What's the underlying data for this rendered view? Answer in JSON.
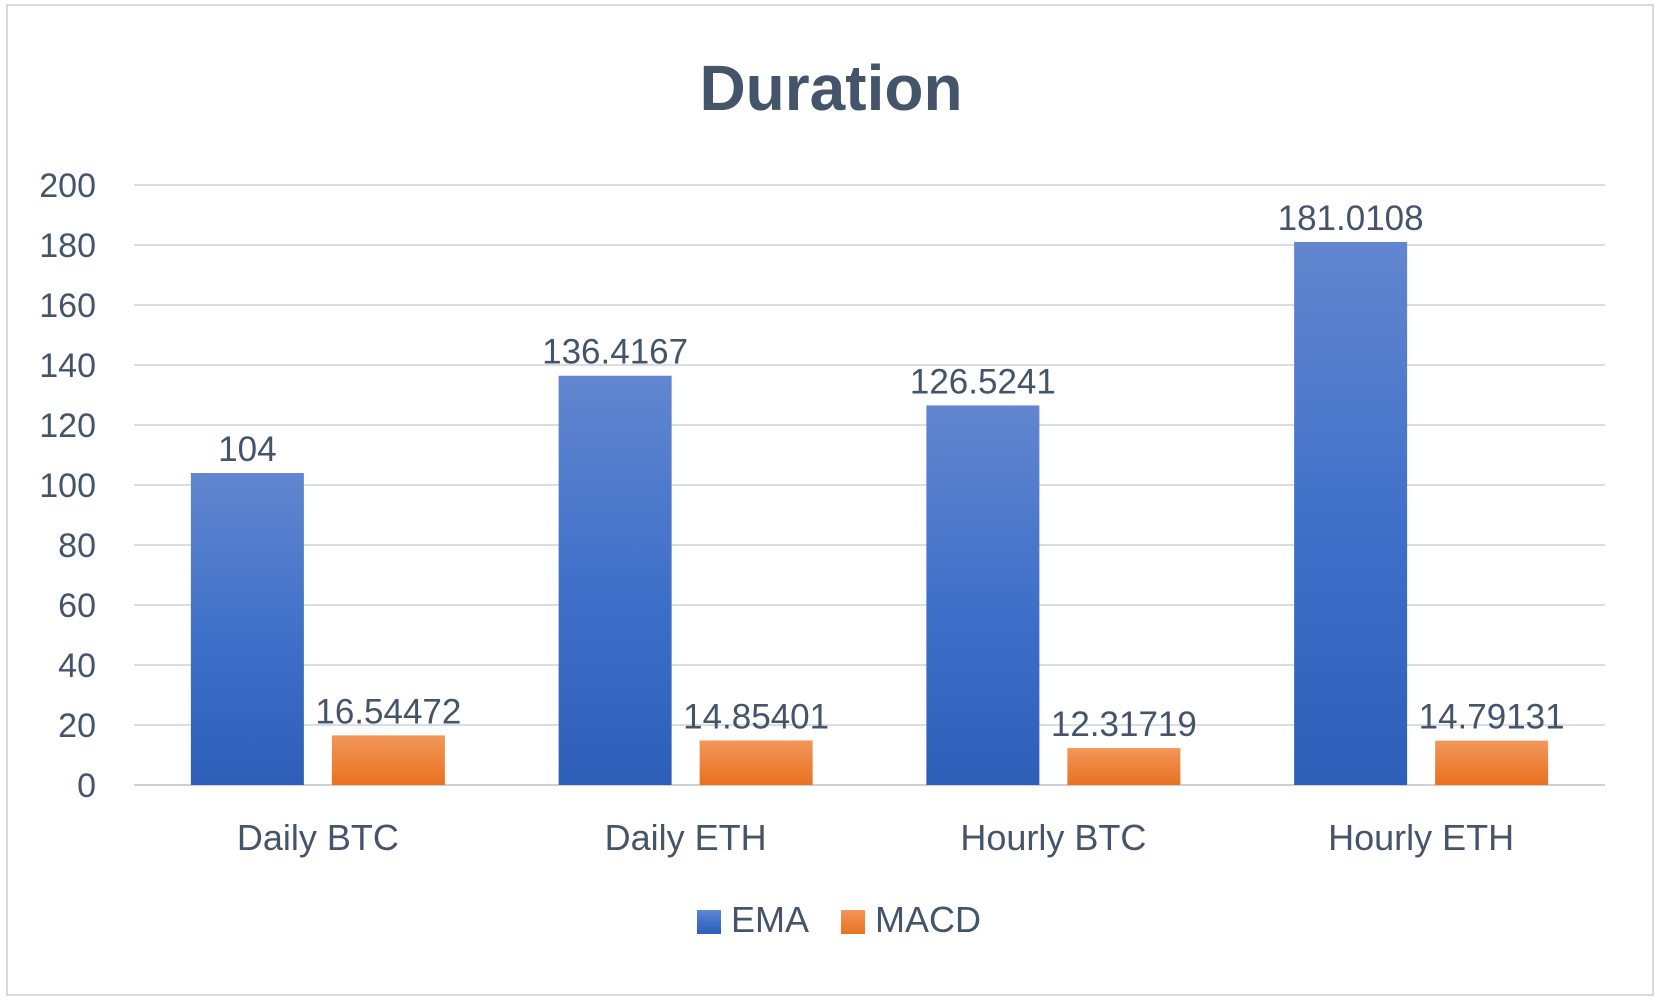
{
  "chart_data": {
    "type": "bar",
    "title": "Duration",
    "xlabel": "",
    "ylabel": "",
    "categories": [
      "Daily BTC",
      "Daily ETH",
      "Hourly BTC",
      "Hourly ETH"
    ],
    "series": [
      {
        "name": "EMA",
        "values": [
          104,
          136.4167,
          126.5241,
          181.0108
        ],
        "labels": [
          "104",
          "136.4167",
          "126.5241",
          "181.0108"
        ],
        "color": "#4472c4"
      },
      {
        "name": "MACD",
        "values": [
          16.54472,
          14.85401,
          12.31719,
          14.79131
        ],
        "labels": [
          "16.54472",
          "14.85401",
          "12.31719",
          "14.79131"
        ],
        "color": "#ed7d31"
      }
    ],
    "ylim": [
      0,
      200
    ],
    "yticks": [
      0,
      20,
      40,
      60,
      80,
      100,
      120,
      140,
      160,
      180,
      200
    ],
    "grid": true,
    "legend_position": "bottom"
  }
}
